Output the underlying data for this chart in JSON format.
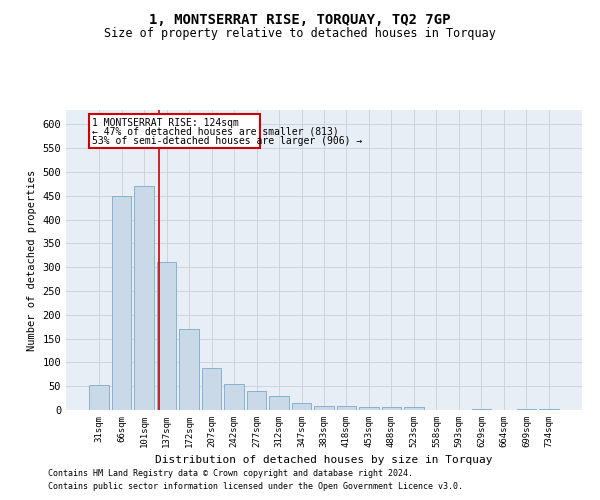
{
  "title": "1, MONTSERRAT RISE, TORQUAY, TQ2 7GP",
  "subtitle": "Size of property relative to detached houses in Torquay",
  "xlabel": "Distribution of detached houses by size in Torquay",
  "ylabel": "Number of detached properties",
  "categories": [
    "31sqm",
    "66sqm",
    "101sqm",
    "137sqm",
    "172sqm",
    "207sqm",
    "242sqm",
    "277sqm",
    "312sqm",
    "347sqm",
    "383sqm",
    "418sqm",
    "453sqm",
    "488sqm",
    "523sqm",
    "558sqm",
    "593sqm",
    "629sqm",
    "664sqm",
    "699sqm",
    "734sqm"
  ],
  "values": [
    52,
    450,
    470,
    310,
    170,
    88,
    55,
    40,
    30,
    15,
    8,
    8,
    7,
    6,
    7,
    1,
    1,
    3,
    1,
    3,
    2
  ],
  "bar_color": "#c9d9e8",
  "bar_edge_color": "#7aaac8",
  "grid_color": "#c8d0dc",
  "background_color": "#e8eef5",
  "red_line_x": 2.65,
  "annotation_title": "1 MONTSERRAT RISE: 124sqm",
  "annotation_line1": "← 47% of detached houses are smaller (813)",
  "annotation_line2": "53% of semi-detached houses are larger (906) →",
  "annotation_box_color": "#ffffff",
  "annotation_border_color": "#cc0000",
  "red_line_color": "#cc0000",
  "footer1": "Contains HM Land Registry data © Crown copyright and database right 2024.",
  "footer2": "Contains public sector information licensed under the Open Government Licence v3.0.",
  "ylim": [
    0,
    630
  ],
  "yticks": [
    0,
    50,
    100,
    150,
    200,
    250,
    300,
    350,
    400,
    450,
    500,
    550,
    600
  ]
}
